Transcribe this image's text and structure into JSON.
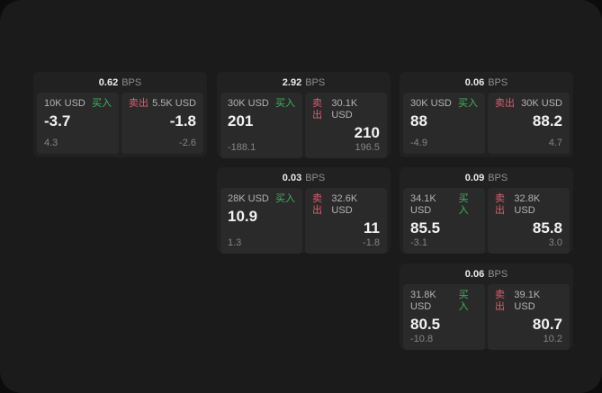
{
  "labels": {
    "bps_unit": "BPS",
    "buy": "买入",
    "sell": "卖出"
  },
  "colors": {
    "buy": "#3cb75e",
    "sell": "#e15b6e"
  },
  "cards": [
    {
      "bps": "0.62",
      "buy": {
        "amount": "10K USD",
        "value": "-3.7",
        "sub": "4.3"
      },
      "sell": {
        "amount": "5.5K USD",
        "value": "-1.8",
        "sub": "-2.6"
      }
    },
    {
      "bps": "2.92",
      "buy": {
        "amount": "30K USD",
        "value": "201",
        "sub": "-188.1"
      },
      "sell": {
        "amount": "30.1K USD",
        "value": "210",
        "sub": "196.5"
      }
    },
    {
      "bps": "0.06",
      "buy": {
        "amount": "30K USD",
        "value": "88",
        "sub": "-4.9"
      },
      "sell": {
        "amount": "30K USD",
        "value": "88.2",
        "sub": "4.7"
      }
    },
    {
      "bps": "0.03",
      "buy": {
        "amount": "28K USD",
        "value": "10.9",
        "sub": "1.3"
      },
      "sell": {
        "amount": "32.6K USD",
        "value": "11",
        "sub": "-1.8"
      }
    },
    {
      "bps": "0.09",
      "buy": {
        "amount": "34.1K USD",
        "value": "85.5",
        "sub": "-3.1"
      },
      "sell": {
        "amount": "32.8K USD",
        "value": "85.8",
        "sub": "3.0"
      }
    },
    {
      "bps": "0.06",
      "buy": {
        "amount": "31.8K USD",
        "value": "80.5",
        "sub": "-10.8"
      },
      "sell": {
        "amount": "39.1K USD",
        "value": "80.7",
        "sub": "10.2"
      }
    }
  ]
}
